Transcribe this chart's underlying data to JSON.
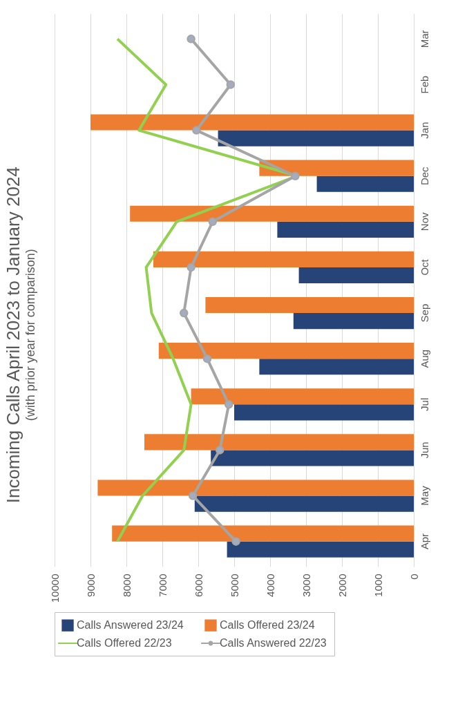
{
  "chart_data": {
    "type": "bar",
    "orientation": "horizontal",
    "title": "Incoming Calls April 2023 to January 2024",
    "subtitle": "(with prior year for comparison)",
    "categories": [
      "Mar",
      "Feb",
      "Jan",
      "Dec",
      "Nov",
      "Oct",
      "Sep",
      "Aug",
      "Jul",
      "Jun",
      "May",
      "Apr"
    ],
    "series": [
      {
        "name": "Calls Answered 23/24",
        "color": "#264478",
        "values": [
          null,
          null,
          5450,
          2700,
          3800,
          3200,
          3350,
          4300,
          5000,
          5650,
          6100,
          5200
        ]
      },
      {
        "name": "Calls Offered 23/24",
        "color": "#ed7d31",
        "values": [
          null,
          null,
          9000,
          4300,
          7900,
          7250,
          5800,
          7100,
          6200,
          7500,
          8800,
          8400
        ]
      },
      {
        "name": "Calls Offered 22/23",
        "color": "#92d050",
        "type": "line",
        "values": [
          8250,
          6900,
          7650,
          3250,
          6600,
          7450,
          7300,
          6700,
          6200,
          6400,
          7550,
          8250
        ]
      },
      {
        "name": "Calls Answered 22/23",
        "color": "#a5a5a5",
        "type": "line",
        "marker": "circle",
        "values": [
          6200,
          5100,
          6050,
          3300,
          5600,
          6200,
          6400,
          5750,
          5150,
          5400,
          6150,
          4950
        ]
      }
    ],
    "xlim": [
      10000,
      0
    ],
    "xticks": [
      0,
      1000,
      2000,
      3000,
      4000,
      5000,
      6000,
      7000,
      8000,
      9000,
      10000
    ],
    "grid": "x",
    "legend": "bottom"
  }
}
